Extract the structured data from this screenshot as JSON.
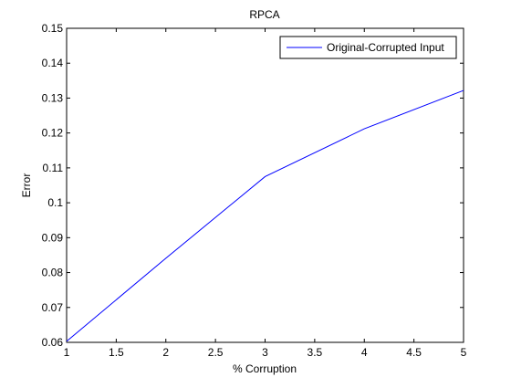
{
  "chart_data": {
    "type": "line",
    "title": "RPCA",
    "xlabel": "% Corruption",
    "ylabel": "Error",
    "xlim": [
      1,
      5
    ],
    "ylim": [
      0.06,
      0.15
    ],
    "xticks": [
      1,
      1.5,
      2,
      2.5,
      3,
      3.5,
      4,
      4.5,
      5
    ],
    "xtick_labels": [
      "1",
      "1.5",
      "2",
      "2.5",
      "3",
      "3.5",
      "4",
      "4.5",
      "5"
    ],
    "yticks": [
      0.06,
      0.07,
      0.08,
      0.09,
      0.1,
      0.11,
      0.12,
      0.13,
      0.14,
      0.15
    ],
    "ytick_labels": [
      "0.06",
      "0.07",
      "0.08",
      "0.09",
      "0.1",
      "0.11",
      "0.12",
      "0.13",
      "0.14",
      "0.15"
    ],
    "grid": false,
    "legend_position": "top-right",
    "series": [
      {
        "name": "Original-Corrupted Input",
        "color": "#0000ff",
        "x": [
          1,
          2,
          3,
          4,
          5
        ],
        "y": [
          0.0603,
          0.0841,
          0.1075,
          0.1212,
          0.1322
        ]
      }
    ]
  }
}
